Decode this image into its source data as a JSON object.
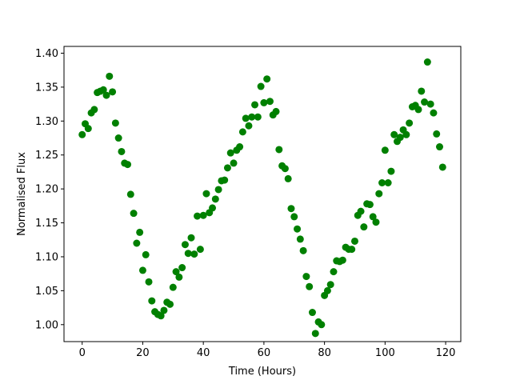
{
  "chart_data": {
    "type": "scatter",
    "title": "",
    "xlabel": "Time (Hours)",
    "ylabel": "Normalised Flux",
    "xlim": [
      -6,
      125
    ],
    "ylim": [
      0.975,
      1.41
    ],
    "xticks": [
      0,
      20,
      40,
      60,
      80,
      100,
      120
    ],
    "yticks": [
      1.0,
      1.05,
      1.1,
      1.15,
      1.2,
      1.25,
      1.3,
      1.35,
      1.4
    ],
    "xtick_labels": [
      "0",
      "20",
      "40",
      "60",
      "80",
      "100",
      "120"
    ],
    "ytick_labels": [
      "1.00",
      "1.05",
      "1.10",
      "1.15",
      "1.20",
      "1.25",
      "1.30",
      "1.35",
      "1.40"
    ],
    "grid": false,
    "marker_color": "#008000",
    "points": [
      [
        0,
        1.28
      ],
      [
        1,
        1.296
      ],
      [
        2,
        1.289
      ],
      [
        3,
        1.312
      ],
      [
        4,
        1.317
      ],
      [
        5,
        1.342
      ],
      [
        6,
        1.344
      ],
      [
        7,
        1.346
      ],
      [
        8,
        1.338
      ],
      [
        9,
        1.366
      ],
      [
        10,
        1.343
      ],
      [
        11,
        1.297
      ],
      [
        12,
        1.275
      ],
      [
        13,
        1.255
      ],
      [
        14,
        1.238
      ],
      [
        15,
        1.236
      ],
      [
        16,
        1.192
      ],
      [
        17,
        1.164
      ],
      [
        18,
        1.12
      ],
      [
        19,
        1.136
      ],
      [
        20,
        1.08
      ],
      [
        21,
        1.103
      ],
      [
        22,
        1.063
      ],
      [
        23,
        1.035
      ],
      [
        24,
        1.019
      ],
      [
        25,
        1.015
      ],
      [
        26,
        1.013
      ],
      [
        27,
        1.021
      ],
      [
        28,
        1.033
      ],
      [
        29,
        1.03
      ],
      [
        30,
        1.055
      ],
      [
        31,
        1.078
      ],
      [
        32,
        1.07
      ],
      [
        33,
        1.084
      ],
      [
        34,
        1.118
      ],
      [
        35,
        1.105
      ],
      [
        36,
        1.128
      ],
      [
        37,
        1.104
      ],
      [
        38,
        1.16
      ],
      [
        39,
        1.111
      ],
      [
        40,
        1.161
      ],
      [
        41,
        1.193
      ],
      [
        42,
        1.165
      ],
      [
        43,
        1.172
      ],
      [
        44,
        1.185
      ],
      [
        45,
        1.199
      ],
      [
        46,
        1.212
      ],
      [
        47,
        1.213
      ],
      [
        48,
        1.231
      ],
      [
        49,
        1.253
      ],
      [
        50,
        1.238
      ],
      [
        51,
        1.257
      ],
      [
        52,
        1.262
      ],
      [
        53,
        1.284
      ],
      [
        54,
        1.304
      ],
      [
        55,
        1.293
      ],
      [
        56,
        1.306
      ],
      [
        57,
        1.324
      ],
      [
        58,
        1.306
      ],
      [
        59,
        1.351
      ],
      [
        60,
        1.327
      ],
      [
        61,
        1.362
      ],
      [
        62,
        1.329
      ],
      [
        63,
        1.309
      ],
      [
        64,
        1.314
      ],
      [
        65,
        1.258
      ],
      [
        66,
        1.234
      ],
      [
        67,
        1.23
      ],
      [
        68,
        1.215
      ],
      [
        69,
        1.171
      ],
      [
        70,
        1.159
      ],
      [
        71,
        1.141
      ],
      [
        72,
        1.126
      ],
      [
        73,
        1.109
      ],
      [
        74,
        1.071
      ],
      [
        75,
        1.056
      ],
      [
        76,
        1.018
      ],
      [
        77,
        0.987
      ],
      [
        78,
        1.004
      ],
      [
        79,
        1.0
      ],
      [
        80,
        1.043
      ],
      [
        81,
        1.05
      ],
      [
        82,
        1.059
      ],
      [
        83,
        1.078
      ],
      [
        84,
        1.094
      ],
      [
        85,
        1.093
      ],
      [
        86,
        1.095
      ],
      [
        87,
        1.114
      ],
      [
        88,
        1.111
      ],
      [
        89,
        1.111
      ],
      [
        90,
        1.123
      ],
      [
        91,
        1.161
      ],
      [
        92,
        1.167
      ],
      [
        93,
        1.144
      ],
      [
        94,
        1.178
      ],
      [
        95,
        1.177
      ],
      [
        96,
        1.159
      ],
      [
        97,
        1.151
      ],
      [
        98,
        1.193
      ],
      [
        99,
        1.209
      ],
      [
        100,
        1.257
      ],
      [
        101,
        1.209
      ],
      [
        102,
        1.226
      ],
      [
        103,
        1.28
      ],
      [
        104,
        1.27
      ],
      [
        105,
        1.276
      ],
      [
        106,
        1.287
      ],
      [
        107,
        1.28
      ],
      [
        108,
        1.297
      ],
      [
        109,
        1.321
      ],
      [
        110,
        1.323
      ],
      [
        111,
        1.317
      ],
      [
        112,
        1.344
      ],
      [
        113,
        1.328
      ],
      [
        114,
        1.387
      ],
      [
        115,
        1.325
      ],
      [
        116,
        1.312
      ],
      [
        117,
        1.281
      ],
      [
        118,
        1.262
      ],
      [
        119,
        1.232
      ]
    ]
  }
}
